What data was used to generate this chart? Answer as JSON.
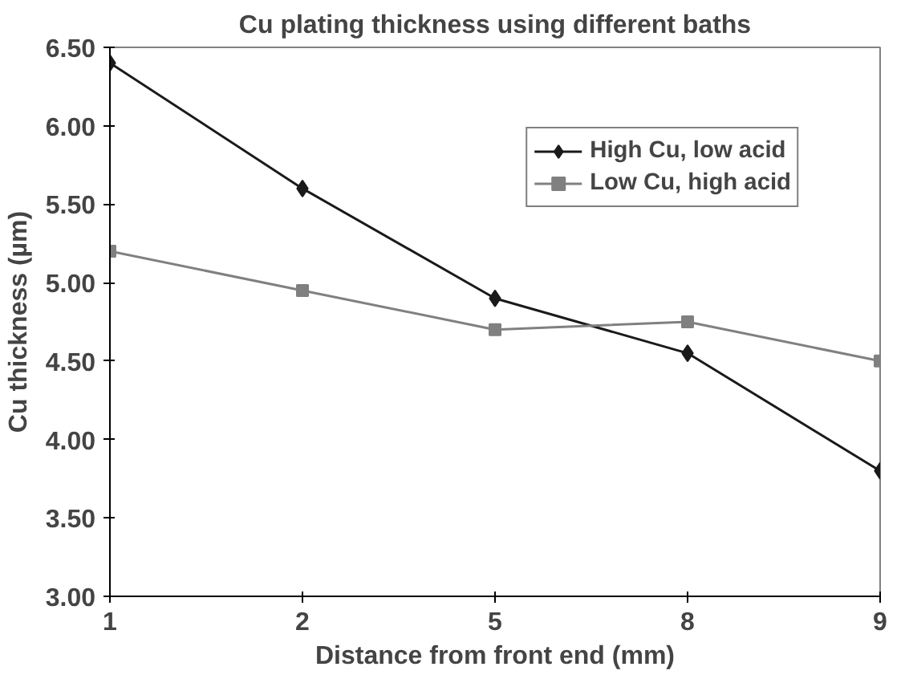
{
  "chart_data": {
    "type": "line",
    "title": "Cu plating thickness using different baths",
    "xlabel": "Distance from front end (mm)",
    "ylabel": "Cu thickness (µm)",
    "categories": [
      "1",
      "2",
      "5",
      "8",
      "9"
    ],
    "series": [
      {
        "name": "High Cu, low acid",
        "color": "#1a1a1a",
        "marker": "diamond",
        "values": [
          6.4,
          5.6,
          4.9,
          4.55,
          3.8
        ]
      },
      {
        "name": "Low Cu, high acid",
        "color": "#808080",
        "marker": "square",
        "values": [
          5.2,
          4.95,
          4.7,
          4.75,
          4.5
        ]
      }
    ],
    "ylim": [
      3.0,
      6.5
    ],
    "yticks": [
      {
        "value": 3.0,
        "label": "3.00"
      },
      {
        "value": 3.5,
        "label": "3.50"
      },
      {
        "value": 4.0,
        "label": "4.00"
      },
      {
        "value": 4.5,
        "label": "4.50"
      },
      {
        "value": 5.0,
        "label": "5.00"
      },
      {
        "value": 5.5,
        "label": "5.50"
      },
      {
        "value": 6.0,
        "label": "6.00"
      },
      {
        "value": 6.5,
        "label": "6.50"
      }
    ],
    "grid": false,
    "legend": "top right",
    "line_style": "solid"
  }
}
